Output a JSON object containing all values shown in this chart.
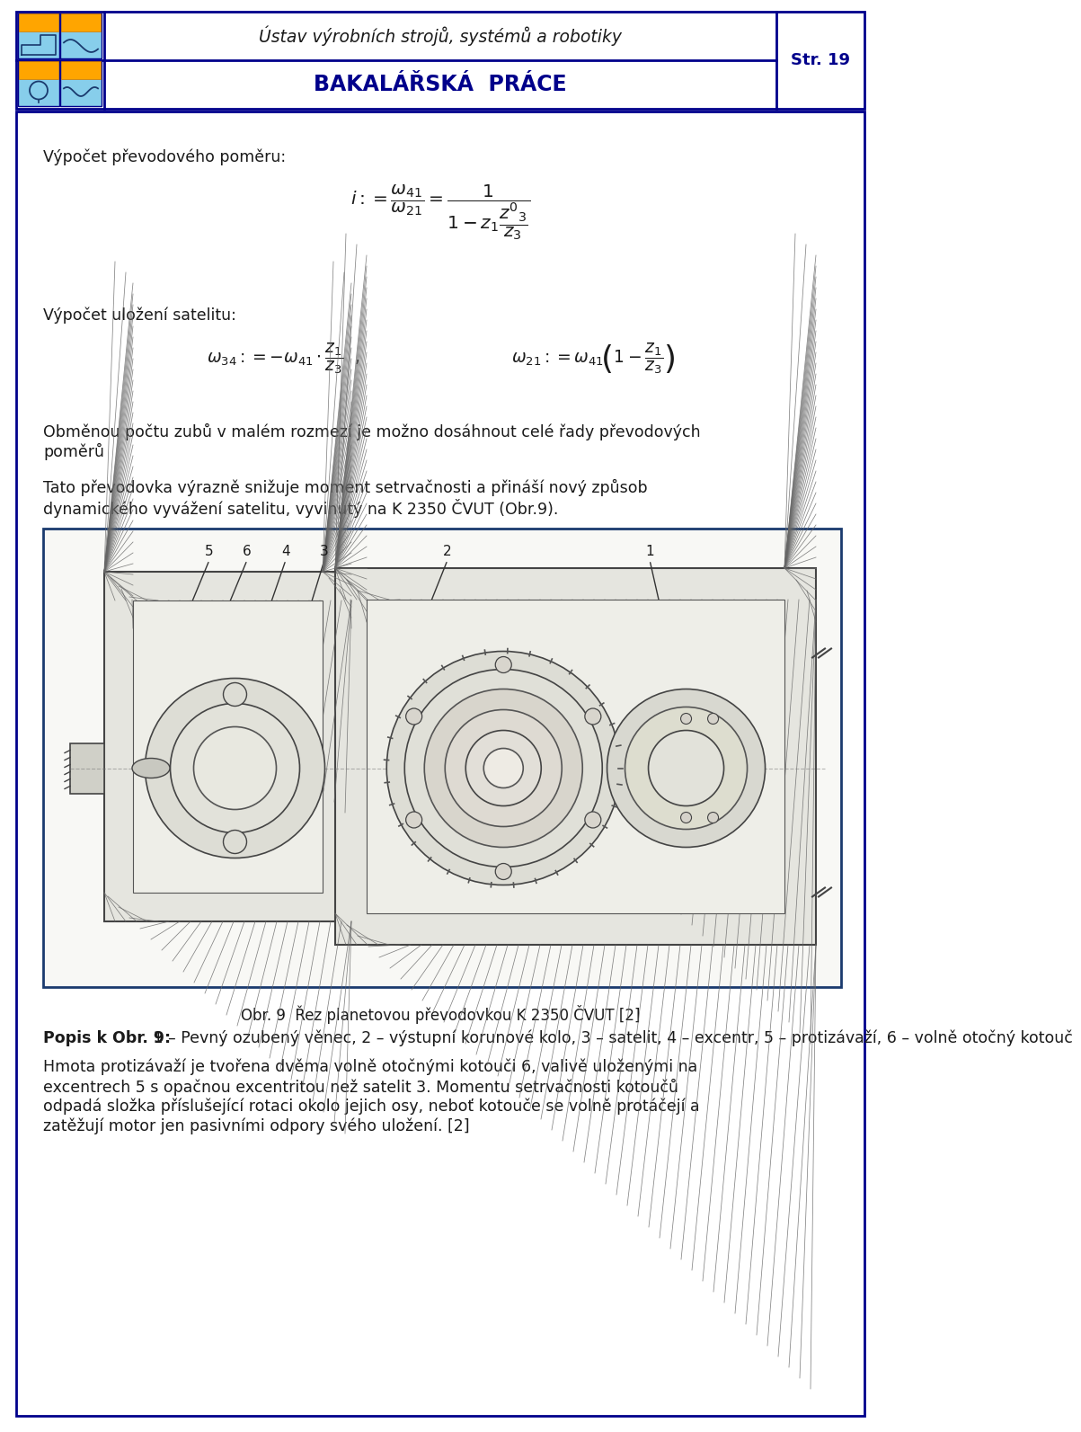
{
  "page_bg": "#ffffff",
  "header_border_color": "#00008B",
  "header_title1": "Ústav výrobních strojů, systémů a robotiky",
  "header_title2": "BAKALÁŘSKÁ  PRÁCE",
  "header_page": "Str. 19",
  "header_title1_color": "#1a1a1a",
  "header_title2_color": "#00008B",
  "header_page_color": "#00008B",
  "text_color": "#1a1a1a",
  "logo_box_color": "#87CEEB",
  "logo_border_color": "#00008B",
  "logo_orange_color": "#FFA500",
  "line_vypocet1": "Výpočet převodového poměru:",
  "line_vypocet2": "Výpočet uložení satelitu:",
  "line3a": "Obměnou počtu zubů v malém rozmezí je možno dosáhnout celé řady převodových",
  "line3b": "poměrů",
  "line4a": "Tato převodovka výrazně snižuje moment setrvačnosti a přináší nový způsob",
  "line4b": "dynamického vyvážení satelitu, vyvinutý na K 2350 ČVUT (Obr.9).",
  "caption": "Obr. 9  Řez planetovou převodovkou K 2350 ČVUT [2]",
  "popis_bold": "Popis k Obr. 9:",
  "popis_rest": " 1 – Pevný ozubený věnec, 2 – výstupní korunové kolo, 3 – satelit, 4 – excentr, 5 – protizávaží, 6 – volně otočný kotouč",
  "para2_lines": [
    "Hmota protizávaží je tvořena dvěma volně otočnými kotouči 6, valivě uloženými na",
    "excentrech 5 s opačnou excentritou než satelit 3. Momentu setrvačnosti kotoučů",
    "odpadá složka příslušející rotaci okolo jejich osy, neboť kotouče se volně protáčejí a",
    "zatěžují motor jen pasivními odpory svého uložení. [2]"
  ],
  "drawing_border": "#1a3a6e",
  "drawing_bg": "#f8f8f5",
  "formula1": "$i := \\dfrac{\\omega_{41}}{\\omega_{21}} = \\dfrac{1}{1 - z_1 \\dfrac{z^{\\prime}_3}{z_3}}$",
  "formula2a": "$\\omega_{34} := -\\omega_{41} \\cdot \\dfrac{z_1}{z_3}$  ,",
  "formula2b": "$\\omega_{21} := \\omega_{41}\\left(1 - \\dfrac{z_1}{z_3}\\right)$"
}
